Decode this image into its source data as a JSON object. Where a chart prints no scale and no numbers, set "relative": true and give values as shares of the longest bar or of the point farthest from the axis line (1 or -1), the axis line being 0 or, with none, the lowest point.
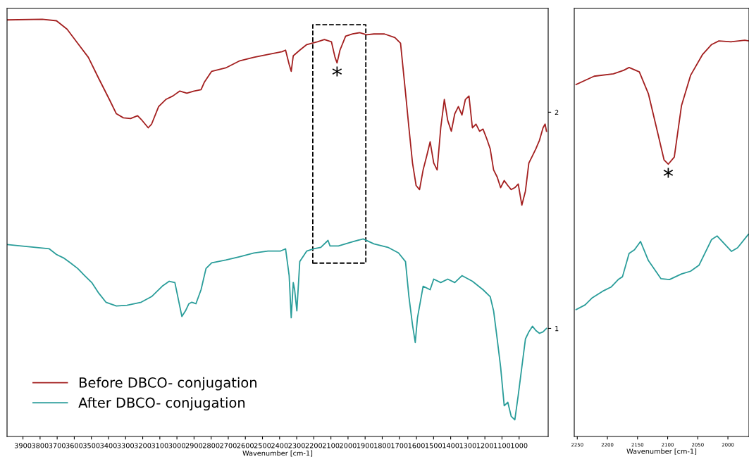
{
  "chart_data": [
    {
      "type": "line",
      "xlabel": "Wavenumber [cm-1]",
      "xlim": [
        3993,
        830
      ],
      "xticks": [
        3900,
        3800,
        3700,
        3600,
        3500,
        3400,
        3300,
        3200,
        3100,
        3000,
        2900,
        2800,
        2700,
        2600,
        2500,
        2400,
        2300,
        2200,
        2100,
        2000,
        1900,
        1800,
        1700,
        1600,
        1500,
        1400,
        1300,
        1200,
        1100,
        1000
      ],
      "ylim": [
        0.5,
        2.48
      ],
      "yticks": [
        1,
        2
      ],
      "legend": "bottom left",
      "grid": false,
      "annotations": [
        {
          "text": "*",
          "x": 2064,
          "y": 2.228
        }
      ],
      "series": [
        {
          "name": "Before DBCO- conjugation",
          "color": "#a31f1f",
          "x": [
            3993,
            3787,
            3704,
            3642,
            3580,
            3518,
            3457,
            3395,
            3354,
            3313,
            3271,
            3230,
            3209,
            3168,
            3148,
            3107,
            3065,
            3024,
            2983,
            2942,
            2900,
            2859,
            2839,
            2797,
            2715,
            2632,
            2550,
            2468,
            2385,
            2365,
            2344,
            2332,
            2320,
            2282,
            2241,
            2179,
            2138,
            2097,
            2076,
            2064,
            2047,
            2014,
            1973,
            1932,
            1891,
            1849,
            1787,
            1726,
            1693,
            1664,
            1644,
            1623,
            1602,
            1582,
            1561,
            1540,
            1520,
            1499,
            1479,
            1458,
            1437,
            1417,
            1396,
            1376,
            1355,
            1334,
            1314,
            1293,
            1273,
            1252,
            1231,
            1211,
            1190,
            1169,
            1149,
            1128,
            1108,
            1087,
            1066,
            1046,
            1025,
            1005,
            984,
            963,
            943,
            922,
            902,
            881,
            860,
            848,
            840
          ],
          "values": [
            2.427,
            2.43,
            2.423,
            2.384,
            2.319,
            2.254,
            2.156,
            2.059,
            1.993,
            1.974,
            1.971,
            1.984,
            1.967,
            1.928,
            1.945,
            2.026,
            2.059,
            2.075,
            2.098,
            2.088,
            2.098,
            2.104,
            2.14,
            2.189,
            2.205,
            2.238,
            2.254,
            2.267,
            2.28,
            2.287,
            2.221,
            2.189,
            2.261,
            2.287,
            2.313,
            2.326,
            2.336,
            2.326,
            2.254,
            2.228,
            2.287,
            2.352,
            2.362,
            2.368,
            2.358,
            2.362,
            2.362,
            2.345,
            2.319,
            2.091,
            1.928,
            1.765,
            1.661,
            1.642,
            1.733,
            1.798,
            1.863,
            1.765,
            1.733,
            1.928,
            2.059,
            1.961,
            1.912,
            1.993,
            2.026,
            1.987,
            2.059,
            2.075,
            1.928,
            1.945,
            1.912,
            1.922,
            1.879,
            1.831,
            1.733,
            1.7,
            1.651,
            1.684,
            1.661,
            1.642,
            1.651,
            1.668,
            1.57,
            1.635,
            1.765,
            1.798,
            1.831,
            1.87,
            1.928,
            1.945,
            1.912
          ]
        },
        {
          "name": "After DBCO- conjugation",
          "color": "#2a9d9a",
          "x": [
            3993,
            3911,
            3828,
            3746,
            3704,
            3663,
            3622,
            3580,
            3539,
            3498,
            3457,
            3415,
            3354,
            3292,
            3209,
            3148,
            3086,
            3045,
            3012,
            2995,
            2971,
            2950,
            2930,
            2913,
            2889,
            2859,
            2830,
            2797,
            2715,
            2632,
            2550,
            2468,
            2394,
            2365,
            2344,
            2332,
            2320,
            2312,
            2299,
            2282,
            2241,
            2200,
            2159,
            2117,
            2105,
            2056,
            1973,
            1911,
            1849,
            1767,
            1705,
            1664,
            1644,
            1623,
            1607,
            1594,
            1561,
            1520,
            1499,
            1458,
            1417,
            1376,
            1334,
            1273,
            1211,
            1169,
            1149,
            1128,
            1108,
            1087,
            1066,
            1046,
            1025,
            1005,
            984,
            963,
            943,
            922,
            902,
            881,
            860,
            840
          ],
          "values": [
            1.388,
            1.381,
            1.375,
            1.368,
            1.342,
            1.326,
            1.303,
            1.277,
            1.244,
            1.212,
            1.163,
            1.121,
            1.104,
            1.107,
            1.121,
            1.147,
            1.195,
            1.218,
            1.212,
            1.147,
            1.055,
            1.081,
            1.114,
            1.121,
            1.114,
            1.179,
            1.277,
            1.303,
            1.316,
            1.332,
            1.349,
            1.358,
            1.358,
            1.368,
            1.244,
            1.049,
            1.212,
            1.179,
            1.081,
            1.309,
            1.358,
            1.368,
            1.375,
            1.407,
            1.381,
            1.381,
            1.401,
            1.414,
            1.391,
            1.375,
            1.349,
            1.309,
            1.147,
            1.016,
            0.935,
            1.049,
            1.195,
            1.179,
            1.228,
            1.212,
            1.228,
            1.212,
            1.244,
            1.218,
            1.179,
            1.147,
            1.081,
            0.951,
            0.821,
            0.642,
            0.658,
            0.593,
            0.577,
            0.691,
            0.821,
            0.951,
            0.984,
            1.01,
            0.99,
            0.977,
            0.984,
            1.0
          ]
        }
      ]
    },
    {
      "type": "line",
      "relative": true,
      "xlabel": "Wavenumber [cm-1]",
      "xlim": [
        2255,
        1965
      ],
      "xticks": [
        2250,
        2200,
        2150,
        2100,
        2050,
        2000
      ],
      "tick_labels": "x",
      "grid": false,
      "annotations": [
        {
          "text": "*",
          "x": 2099,
          "y": 0.687
        }
      ],
      "series": [
        {
          "color": "#a31f1f",
          "x": [
            2252,
            2222,
            2190,
            2173,
            2164,
            2147,
            2132,
            2117,
            2106,
            2099,
            2089,
            2077,
            2062,
            2042,
            2027,
            2015,
            1995,
            1972,
            1965
          ],
          "values": [
            0.888,
            0.909,
            0.915,
            0.924,
            0.931,
            0.92,
            0.865,
            0.769,
            0.698,
            0.687,
            0.705,
            0.835,
            0.911,
            0.964,
            0.989,
            0.998,
            0.996,
            1,
            0.998
          ]
        },
        {
          "color": "#2a9d9a",
          "x": [
            2252,
            2237,
            2225,
            2206,
            2194,
            2182,
            2175,
            2164,
            2155,
            2145,
            2132,
            2111,
            2097,
            2077,
            2062,
            2048,
            2027,
            2018,
            1994,
            1984,
            1966
          ],
          "values": [
            0.32,
            0.332,
            0.35,
            0.368,
            0.377,
            0.396,
            0.403,
            0.462,
            0.471,
            0.492,
            0.444,
            0.398,
            0.396,
            0.41,
            0.417,
            0.432,
            0.497,
            0.506,
            0.467,
            0.476,
            0.51
          ]
        }
      ]
    }
  ]
}
